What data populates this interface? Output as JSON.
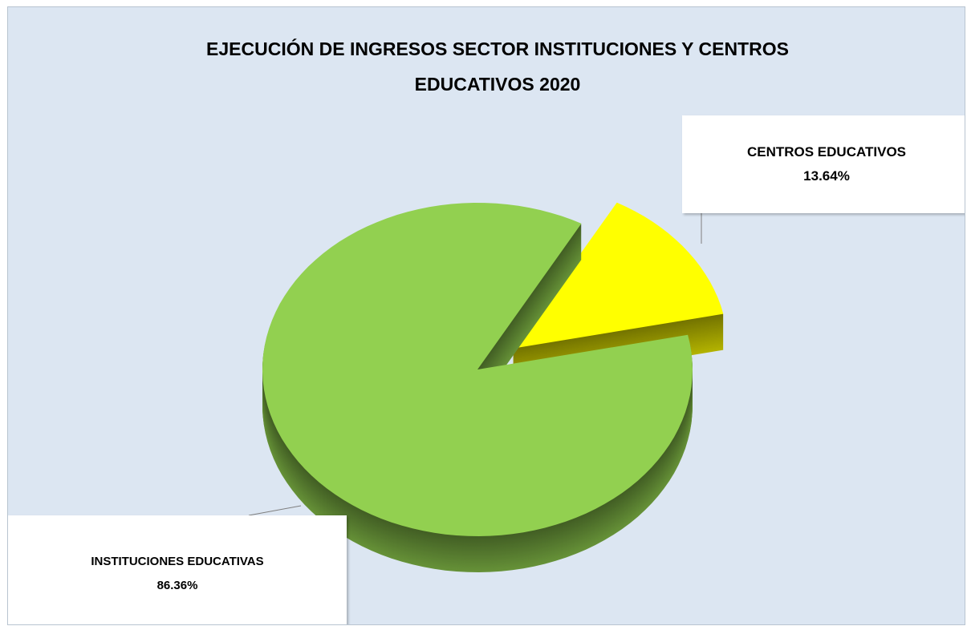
{
  "chart_data": {
    "type": "pie",
    "title": "EJECUCIÓN DE INGRESOS SECTOR INSTITUCIONES Y CENTROS EDUCATIVOS 2020",
    "categories": [
      "INSTITUCIONES EDUCATIVAS",
      "CENTROS EDUCATIVOS"
    ],
    "values": [
      86.36,
      13.64
    ],
    "value_labels": [
      "86.36%",
      "13.64%"
    ],
    "colors": [
      "#92d050",
      "#ffff00"
    ]
  }
}
